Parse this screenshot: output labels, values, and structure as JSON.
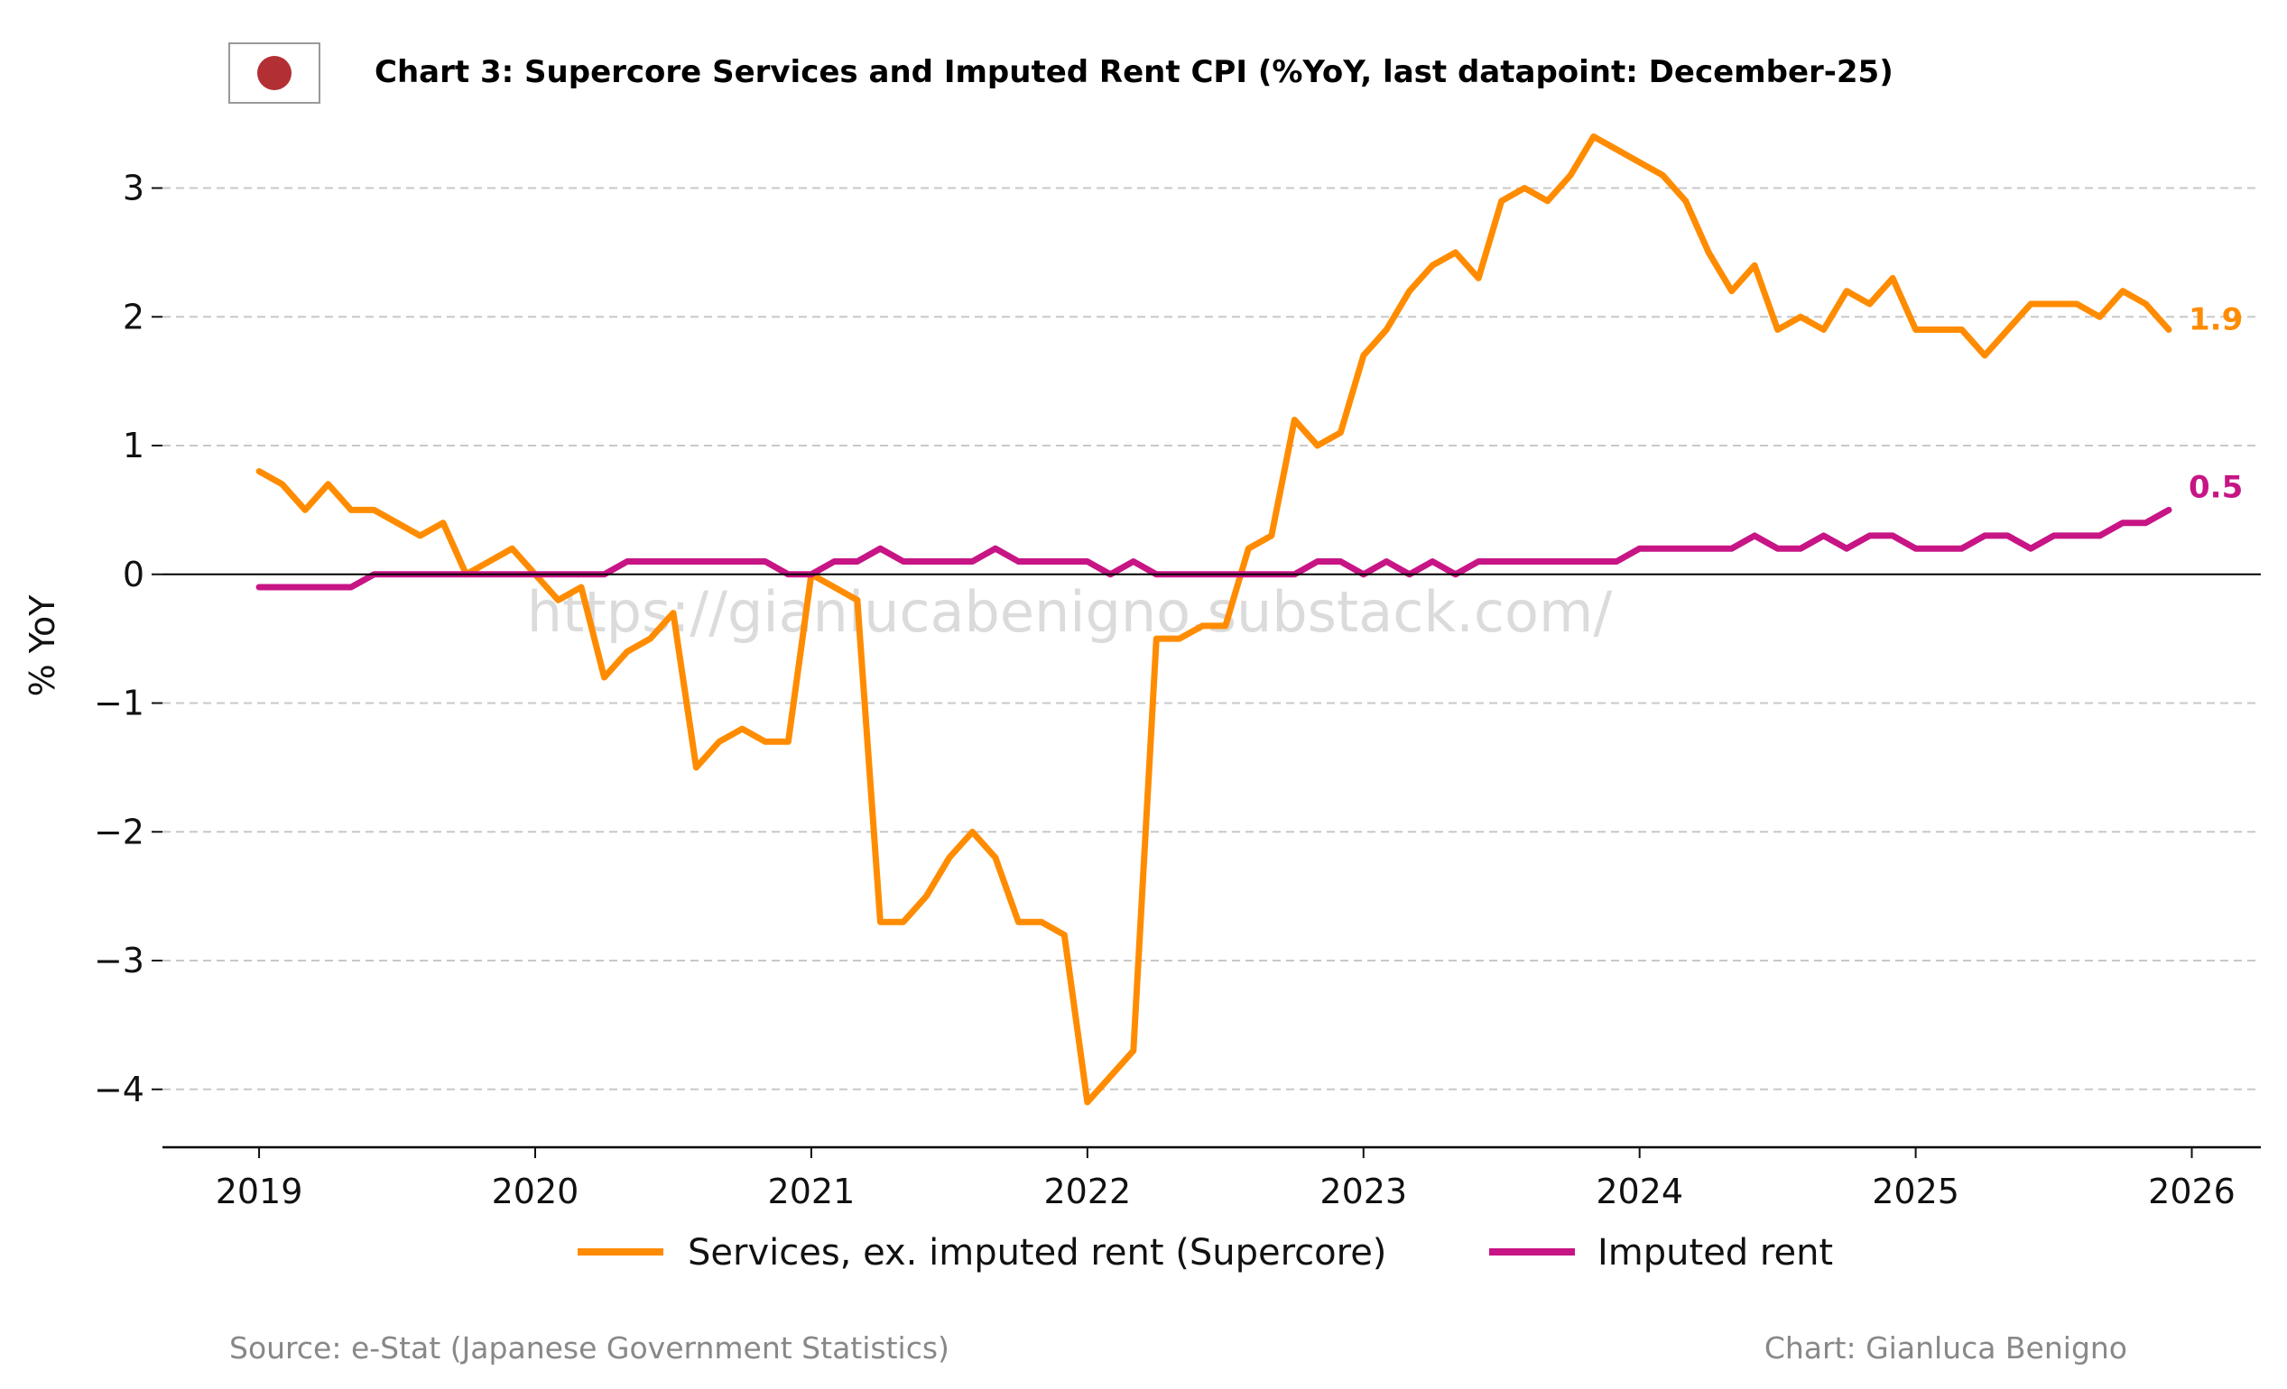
{
  "title": "Chart 3: Supercore Services and Imputed Rent CPI (%YoY, last datapoint: December-25)",
  "watermark": "https://gianlucabenigno.substack.com/",
  "source": "Source: e-Stat (Japanese Government Statistics)",
  "credit": "Chart: Gianluca Benigno",
  "flag_icon": "japan-flag-icon",
  "colors": {
    "supercore": "#FF8C00",
    "imputed_rent": "#C71585",
    "grid": "#c8c8c8",
    "flag_red": "#B22F34"
  },
  "chart_data": {
    "type": "line",
    "ylabel": "% YoY",
    "xlabel": "",
    "ylim": [
      -4.45,
      3.55
    ],
    "xlim": [
      2018.65,
      2026.25
    ],
    "yticks": [
      -4,
      -3,
      -2,
      -1,
      0,
      1,
      2,
      3
    ],
    "ytick_labels": [
      "−4",
      "−3",
      "−2",
      "−1",
      "0",
      "1",
      "2",
      "3"
    ],
    "xticks": [
      2019,
      2020,
      2021,
      2022,
      2023,
      2024,
      2025,
      2026
    ],
    "xtick_labels": [
      "2019",
      "2020",
      "2021",
      "2022",
      "2023",
      "2024",
      "2025",
      "2026"
    ],
    "grid": "horizontal dashed",
    "legend_position": "bottom-center",
    "x_start": "2019-01",
    "x_end": "2025-12",
    "frequency": "monthly",
    "series": [
      {
        "name": "Services, ex. imputed rent (Supercore)",
        "color": "#FF8C00",
        "end_label": "1.9",
        "values": [
          0.8,
          0.7,
          0.5,
          0.7,
          0.5,
          0.5,
          0.4,
          0.3,
          0.4,
          0.0,
          0.1,
          0.2,
          0.0,
          -0.2,
          -0.1,
          -0.8,
          -0.6,
          -0.5,
          -0.3,
          -1.5,
          -1.3,
          -1.2,
          -1.3,
          -1.3,
          0.0,
          -0.1,
          -0.2,
          -2.7,
          -2.7,
          -2.5,
          -2.2,
          -2.0,
          -2.2,
          -2.7,
          -2.7,
          -2.8,
          -4.1,
          -3.9,
          -3.7,
          -0.5,
          -0.5,
          -0.4,
          -0.4,
          0.2,
          0.3,
          1.2,
          1.0,
          1.1,
          1.7,
          1.9,
          2.2,
          2.4,
          2.5,
          2.3,
          2.9,
          3.0,
          2.9,
          3.1,
          3.4,
          3.3,
          3.2,
          3.1,
          2.9,
          2.5,
          2.2,
          2.4,
          1.9,
          2.0,
          1.9,
          2.2,
          2.1,
          2.3,
          1.9,
          1.9,
          1.9,
          1.7,
          1.9,
          2.1,
          2.1,
          2.1,
          2.0,
          2.2,
          2.1,
          1.9
        ]
      },
      {
        "name": "Imputed rent",
        "color": "#C71585",
        "end_label": "0.5",
        "values": [
          -0.1,
          -0.1,
          -0.1,
          -0.1,
          -0.1,
          0.0,
          0.0,
          0.0,
          0.0,
          0.0,
          0.0,
          0.0,
          0.0,
          0.0,
          0.0,
          0.0,
          0.1,
          0.1,
          0.1,
          0.1,
          0.1,
          0.1,
          0.1,
          0.0,
          0.0,
          0.1,
          0.1,
          0.2,
          0.1,
          0.1,
          0.1,
          0.1,
          0.2,
          0.1,
          0.1,
          0.1,
          0.1,
          0.0,
          0.1,
          0.0,
          0.0,
          0.0,
          0.0,
          0.0,
          0.0,
          0.0,
          0.1,
          0.1,
          0.0,
          0.1,
          0.0,
          0.1,
          0.0,
          0.1,
          0.1,
          0.1,
          0.1,
          0.1,
          0.1,
          0.1,
          0.2,
          0.2,
          0.2,
          0.2,
          0.2,
          0.3,
          0.2,
          0.2,
          0.3,
          0.2,
          0.3,
          0.3,
          0.2,
          0.2,
          0.2,
          0.3,
          0.3,
          0.2,
          0.3,
          0.3,
          0.3,
          0.4,
          0.4,
          0.5
        ]
      }
    ]
  }
}
